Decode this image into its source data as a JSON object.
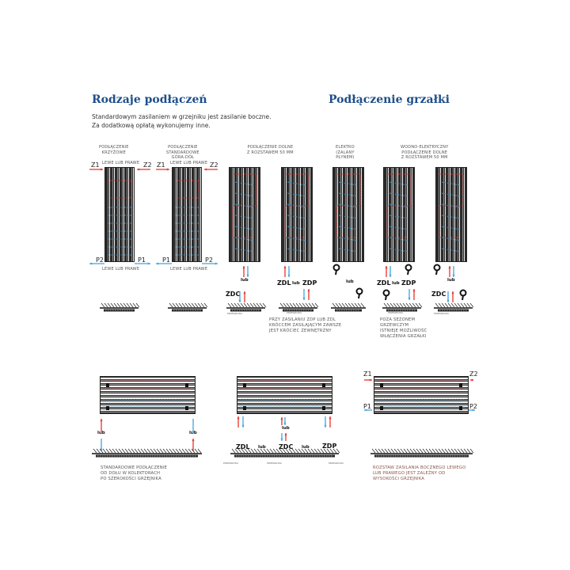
{
  "headings": {
    "connections": "Rodzaje podłączeń",
    "heater": "Podłączenie grzałki"
  },
  "intro": [
    "Standardowym zasilaniem w grzejniku jest zasilanie boczne.",
    "Za dodatkową opłatą wykonujemy inne."
  ],
  "vertical": {
    "cross": {
      "title": [
        "PODŁĄCZENIE",
        "KRZYŻOWE"
      ],
      "top": "LEWE LUB PRAWE",
      "bottom": "LEWE LUB PRAWE",
      "z1": "Z1",
      "z2": "Z2",
      "p1": "P1",
      "p2": "P2"
    },
    "standard": {
      "title": [
        "PODŁĄCZENIE",
        "STANDARDOWE",
        "GÓRA-DÓŁ"
      ],
      "top": "LEWE LUB PRAWE",
      "bottom": "LEWE LUB PRAWE",
      "z1": "Z1",
      "z2": "Z2",
      "p1": "P1",
      "p2": "P2"
    },
    "bottom": {
      "title": [
        "PODŁĄCZENIE DOLNE",
        "Z ROZSTAWEM 50 MM"
      ],
      "lub1": "lub",
      "zdc": "ZDC",
      "zdl": "ZDL",
      "lub2": "lub",
      "zdp": "ZDP",
      "partition1": "PRZEGRODA",
      "partition2": "PRZEGRODA",
      "note": [
        "PRZY ZASILANIU ZDP LUB ZDL",
        "KRÓCCEM ZASILAJĄCYM ZAWSZE",
        "JEST KRÓCIEC ZEWNĘTRZNY"
      ]
    },
    "electric": {
      "title": [
        "ELEKTRO",
        "(ZALANY",
        "PŁYNEM)"
      ],
      "lub": "lub"
    },
    "combo": {
      "title": [
        "WODNO-ELEKTRYCZNY",
        "PODŁĄCZENIE DOLNE",
        "Z ROZSTAWEM 50 MM"
      ],
      "zdl": "ZDL",
      "lub1": "lub",
      "zdp": "ZDP",
      "lub2": "lub",
      "zdc": "ZDC",
      "partition1": "PRZEGRODA",
      "partition2": "PRZEGRODA",
      "note": [
        "POZA SEZONEM",
        "GRZEWCZYM",
        "ISTNIEJE MOŻLIWOŚĆ",
        "WŁĄCZENIA GRZAŁKI"
      ]
    }
  },
  "horizontal": {
    "collectors": {
      "lub1": "lub",
      "lub2": "lub",
      "note": [
        "STANDARDOWE PODŁĄCZENIE",
        "OD DOŁU W KOLEKTORACH",
        "PO SZEROKOŚCI GRZEJNIKA"
      ]
    },
    "bottom": {
      "zdl": "ZDL",
      "lub1": "lub",
      "zdc": "ZDC",
      "lub2": "lub",
      "zdp": "ZDP",
      "lub3": "lub",
      "partition1": "PRZEGRODA",
      "partition2": "PRZEGRODA",
      "partition3": "PRZEGRODA"
    },
    "side": {
      "z1": "Z1",
      "z2": "Z2",
      "p1": "P1",
      "p2": "P2",
      "note": [
        "ROZSTAW ZASILANIA BOCZNEGO LEWEGO",
        "LUB PRAWEGO JEST ZALEŻNY OD",
        "WYSOKOŚCI GRZEJNIKA"
      ]
    }
  },
  "colors": {
    "heading": "#1d4f8a",
    "supply": "#e8322b",
    "return": "#3fa3e0",
    "radiator": "#2a2a2a"
  },
  "icons": {
    "heater": "heater-plug-icon",
    "supply": "arrow-up-red-icon",
    "return": "arrow-down-blue-icon",
    "floor": "floor-hatch-icon"
  }
}
